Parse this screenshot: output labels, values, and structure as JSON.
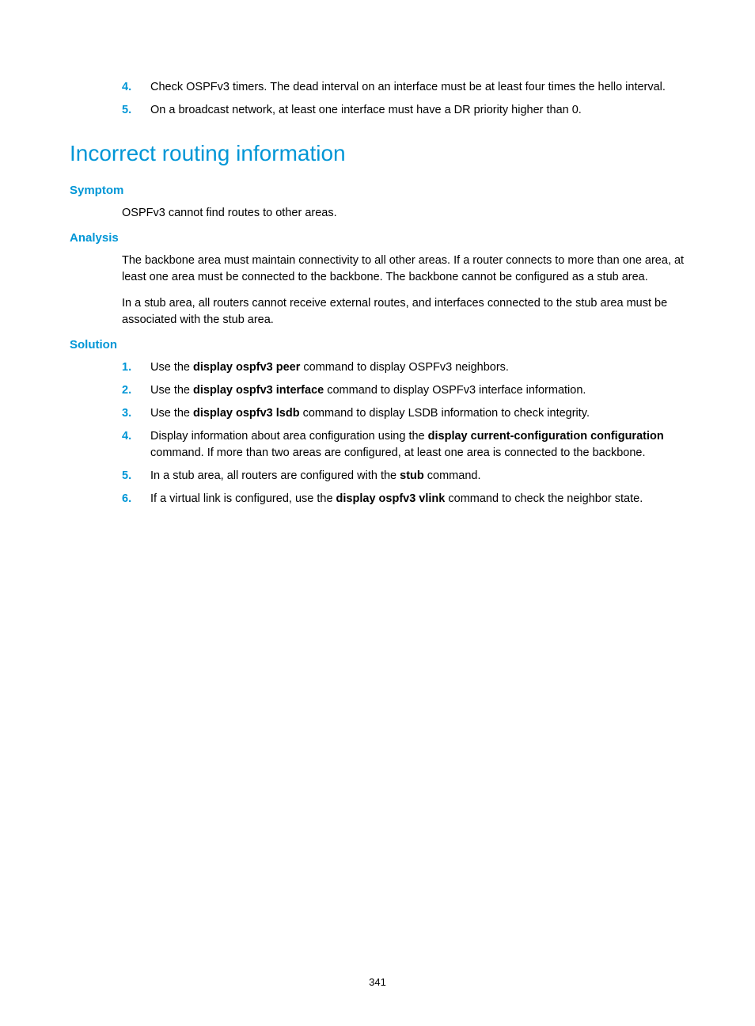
{
  "colors": {
    "accent": "#0096d6",
    "text": "#000000",
    "background": "#ffffff"
  },
  "typography": {
    "body_fontsize": 14.5,
    "h1_fontsize": 28,
    "h3_fontsize": 15,
    "pagenum_fontsize": 13,
    "line_height": 1.45
  },
  "top_list": [
    {
      "num": "4.",
      "text": "Check OSPFv3 timers. The dead interval on an interface must be at least four times the hello interval."
    },
    {
      "num": "5.",
      "text": "On a broadcast network, at least one interface must have a DR priority higher than 0."
    }
  ],
  "heading": "Incorrect routing information",
  "symptom": {
    "label": "Symptom",
    "text": "OSPFv3 cannot find routes to other areas."
  },
  "analysis": {
    "label": "Analysis",
    "p1": "The backbone area must maintain connectivity to all other areas. If a router connects to more than one area, at least one area must be connected to the backbone. The backbone cannot be configured as a stub area.",
    "p2": "In a stub area, all routers cannot receive external routes, and interfaces connected to the stub area must be associated with the stub area."
  },
  "solution": {
    "label": "Solution",
    "items": [
      {
        "num": "1.",
        "pre": "Use the ",
        "bold1": "display ospfv3 peer",
        "post1": " command to display OSPFv3 neighbors."
      },
      {
        "num": "2.",
        "pre": "Use the ",
        "bold1": "display ospfv3 interface",
        "post1": " command to display OSPFv3 interface information."
      },
      {
        "num": "3.",
        "pre": "Use the ",
        "bold1": "display ospfv3 lsdb",
        "post1": " command to display LSDB information to check integrity."
      },
      {
        "num": "4.",
        "pre": "Display information about area configuration using the ",
        "bold1": "display current-configuration configuration",
        "post1": " command. If more than two areas are configured, at least one area is connected to the backbone."
      },
      {
        "num": "5.",
        "pre": "In a stub area, all routers are configured with the ",
        "bold1": "stub",
        "post1": " command."
      },
      {
        "num": "6.",
        "pre": "If a virtual link is configured, use the ",
        "bold1": "display ospfv3 vlink",
        "post1": " command to check the neighbor state."
      }
    ]
  },
  "page_number": "341"
}
